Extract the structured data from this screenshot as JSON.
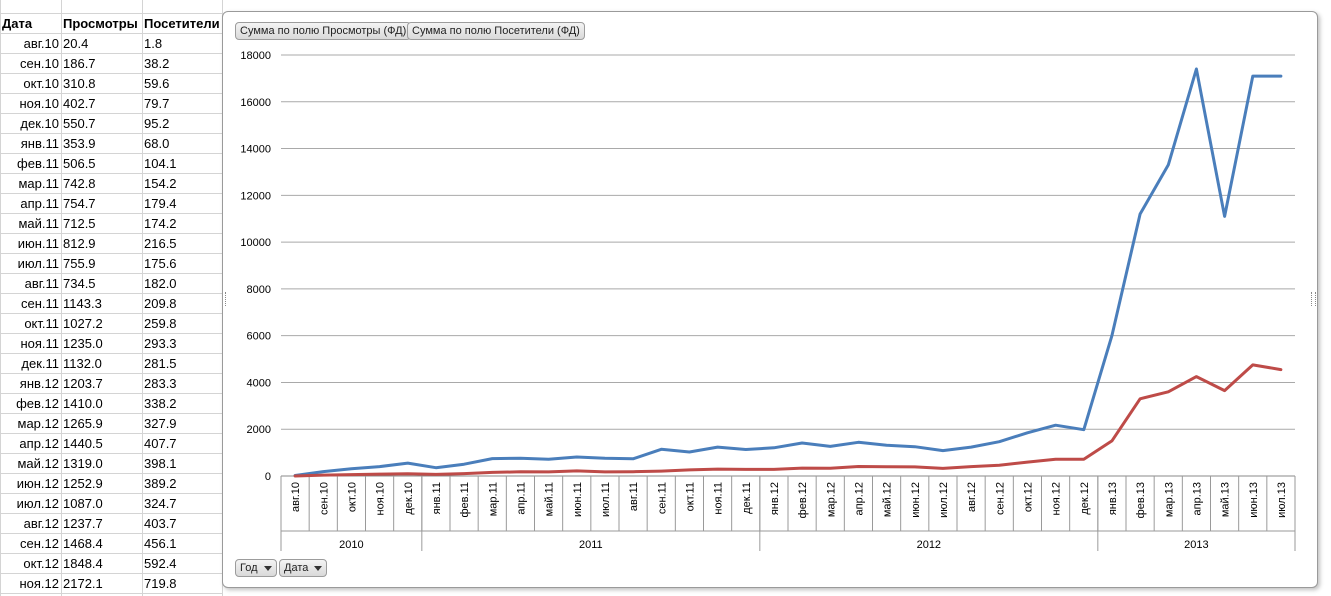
{
  "table": {
    "headers": [
      "Дата",
      "Просмотры",
      "Посетители"
    ],
    "rows": [
      [
        "авг.10",
        "20.4",
        "1.8"
      ],
      [
        "сен.10",
        "186.7",
        "38.2"
      ],
      [
        "окт.10",
        "310.8",
        "59.6"
      ],
      [
        "ноя.10",
        "402.7",
        "79.7"
      ],
      [
        "дек.10",
        "550.7",
        "95.2"
      ],
      [
        "янв.11",
        "353.9",
        "68.0"
      ],
      [
        "фев.11",
        "506.5",
        "104.1"
      ],
      [
        "мар.11",
        "742.8",
        "154.2"
      ],
      [
        "апр.11",
        "754.7",
        "179.4"
      ],
      [
        "май.11",
        "712.5",
        "174.2"
      ],
      [
        "июн.11",
        "812.9",
        "216.5"
      ],
      [
        "июл.11",
        "755.9",
        "175.6"
      ],
      [
        "авг.11",
        "734.5",
        "182.0"
      ],
      [
        "сен.11",
        "1143.3",
        "209.8"
      ],
      [
        "окт.11",
        "1027.2",
        "259.8"
      ],
      [
        "ноя.11",
        "1235.0",
        "293.3"
      ],
      [
        "дек.11",
        "1132.0",
        "281.5"
      ],
      [
        "янв.12",
        "1203.7",
        "283.3"
      ],
      [
        "фев.12",
        "1410.0",
        "338.2"
      ],
      [
        "мар.12",
        "1265.9",
        "327.9"
      ],
      [
        "апр.12",
        "1440.5",
        "407.7"
      ],
      [
        "май.12",
        "1319.0",
        "398.1"
      ],
      [
        "июн.12",
        "1252.9",
        "389.2"
      ],
      [
        "июл.12",
        "1087.0",
        "324.7"
      ],
      [
        "авг.12",
        "1237.7",
        "403.7"
      ],
      [
        "сен.12",
        "1468.4",
        "456.1"
      ],
      [
        "окт.12",
        "1848.4",
        "592.4"
      ],
      [
        "ноя.12",
        "2172.1",
        "719.8"
      ]
    ]
  },
  "pivot": {
    "value_fields": [
      "Сумма по полю Просмотры (ФД)",
      "Сумма по полю Посетители (ФД)"
    ],
    "axis_fields": [
      "Год",
      "Дата"
    ]
  },
  "colors": {
    "series1": "#4a7ebb",
    "series2": "#be4b48"
  },
  "chart_data": {
    "type": "line",
    "x": [
      "авг.10",
      "сен.10",
      "окт.10",
      "ноя.10",
      "дек.10",
      "янв.11",
      "фев.11",
      "мар.11",
      "апр.11",
      "май.11",
      "июн.11",
      "июл.11",
      "авг.11",
      "сен.11",
      "окт.11",
      "ноя.11",
      "дек.11",
      "янв.12",
      "фев.12",
      "мар.12",
      "апр.12",
      "май.12",
      "июн.12",
      "июл.12",
      "авг.12",
      "сен.12",
      "окт.12",
      "ноя.12",
      "дек.12",
      "янв.13",
      "фев.13",
      "мар.13",
      "апр.13",
      "май.13",
      "июн.13",
      "июл.13"
    ],
    "groups": [
      {
        "label": "2010",
        "count": 5
      },
      {
        "label": "2011",
        "count": 12
      },
      {
        "label": "2012",
        "count": 12
      },
      {
        "label": "2013",
        "count": 7
      }
    ],
    "series": [
      {
        "values": [
          20.4,
          186.7,
          310.8,
          402.7,
          550.7,
          353.9,
          506.5,
          742.8,
          754.7,
          712.5,
          812.9,
          755.9,
          734.5,
          1143.3,
          1027.2,
          1235.0,
          1132.0,
          1203.7,
          1410.0,
          1265.9,
          1440.5,
          1319.0,
          1252.9,
          1087.0,
          1237.7,
          1468.4,
          1848.4,
          2172.1,
          1980,
          6000,
          11200,
          13300,
          17400,
          11100,
          17100,
          17100
        ]
      },
      {
        "values": [
          1.8,
          38.2,
          59.6,
          79.7,
          95.2,
          68.0,
          104.1,
          154.2,
          179.4,
          174.2,
          216.5,
          175.6,
          182.0,
          209.8,
          259.8,
          293.3,
          281.5,
          283.3,
          338.2,
          327.9,
          407.7,
          398.1,
          389.2,
          324.7,
          403.7,
          456.1,
          592.4,
          719.8,
          720,
          1500,
          3300,
          3600,
          4250,
          3650,
          4750,
          4550
        ]
      }
    ],
    "ylim": [
      0,
      18000
    ],
    "yticks": [
      0,
      2000,
      4000,
      6000,
      8000,
      10000,
      12000,
      14000,
      16000,
      18000
    ],
    "grid": true
  }
}
